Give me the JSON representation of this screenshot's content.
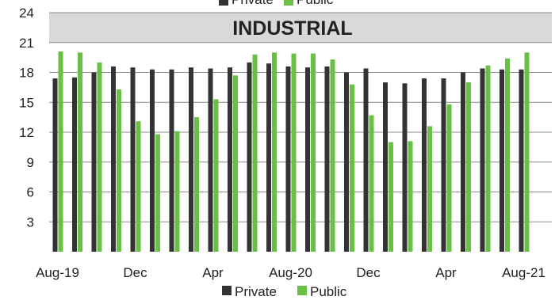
{
  "chart_data": {
    "type": "bar",
    "title": "INDUSTRIAL",
    "ylim": [
      0,
      24
    ],
    "yticks": [
      "3",
      "6",
      "9",
      "12",
      "15",
      "18",
      "21",
      "24"
    ],
    "grid": true,
    "legend_placement": "top and bottom",
    "x_tick_labels": [
      "Aug-19",
      "Dec",
      "Apr",
      "Aug-20",
      "Dec",
      "Apr",
      "Aug-21"
    ],
    "x_tick_index": [
      0,
      4,
      8,
      12,
      16,
      20,
      24
    ],
    "categories": [
      "Aug-19",
      "Sep-19",
      "Oct-19",
      "Nov-19",
      "Dec-19",
      "Jan-20",
      "Feb-20",
      "Mar-20",
      "Apr-20",
      "May-20",
      "Jun-20",
      "Jul-20",
      "Aug-20",
      "Sep-20",
      "Oct-20",
      "Nov-20",
      "Dec-20",
      "Jan-21",
      "Feb-21",
      "Mar-21",
      "Apr-21",
      "May-21",
      "Jun-21",
      "Jul-21",
      "Aug-21"
    ],
    "series": [
      {
        "name": "Private",
        "color": "#333333",
        "values": [
          17.4,
          17.5,
          18.0,
          18.6,
          18.5,
          18.3,
          18.3,
          18.5,
          18.4,
          18.5,
          19.0,
          18.9,
          18.6,
          18.5,
          18.6,
          18.0,
          18.4,
          17.0,
          16.9,
          17.4,
          17.4,
          18.0,
          18.4,
          18.3,
          18.3
        ]
      },
      {
        "name": "Public",
        "color": "#6abf45",
        "values": [
          20.1,
          20.0,
          19.0,
          16.3,
          13.1,
          11.8,
          12.1,
          13.5,
          15.3,
          17.7,
          19.8,
          20.0,
          19.9,
          19.9,
          19.3,
          16.8,
          13.7,
          11.0,
          11.1,
          12.6,
          14.8,
          17.0,
          18.7,
          19.4,
          20.0
        ]
      }
    ],
    "legend": [
      {
        "label": "Private",
        "color": "#333333"
      },
      {
        "label": "Public",
        "color": "#6abf45"
      }
    ]
  }
}
